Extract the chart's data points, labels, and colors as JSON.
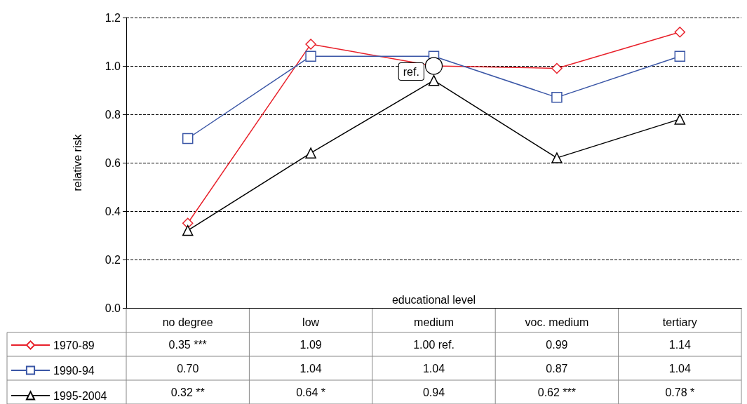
{
  "chart_data": {
    "type": "line",
    "xlabel": "educational level",
    "ylabel": "relative risk",
    "categories": [
      "no degree",
      "low",
      "medium",
      "voc. medium",
      "tertiary"
    ],
    "ylim": [
      0,
      1.2
    ],
    "yticks": [
      {
        "value": 0,
        "label": "0.0"
      },
      {
        "value": 0.2,
        "label": "0.2"
      },
      {
        "value": 0.4,
        "label": "0.4"
      },
      {
        "value": 0.6,
        "label": "0.6"
      },
      {
        "value": 0.8,
        "label": "0.8"
      },
      {
        "value": 1,
        "label": "1.0"
      },
      {
        "value": 1.2,
        "label": "1.2"
      }
    ],
    "grid": "y",
    "line_style": "solid",
    "legend": "bottom left",
    "annotations": [
      {
        "text": "ref.",
        "x": "medium",
        "y": 1.0
      }
    ],
    "series": [
      {
        "name": "1970-89",
        "color": "#e8202a",
        "marker": "diamond",
        "values": [
          0.35,
          1.09,
          1.0,
          0.99,
          1.14
        ],
        "value_labels": [
          "0.35 ***",
          "1.09",
          "1.00 ref.",
          "0.99",
          "1.14"
        ]
      },
      {
        "name": "1990-94",
        "color": "#3a56a6",
        "marker": "square",
        "values": [
          0.7,
          1.04,
          1.04,
          0.87,
          1.04
        ],
        "value_labels": [
          "0.70",
          "1.04",
          "1.04",
          "0.87",
          "1.04"
        ]
      },
      {
        "name": "1995-2004",
        "color": "#000000",
        "marker": "triangle",
        "values": [
          0.32,
          0.64,
          0.94,
          0.62,
          0.78
        ],
        "value_labels": [
          "0.32 **",
          "0.64 *",
          "0.94",
          "0.62 ***",
          "0.78 *"
        ]
      }
    ]
  }
}
